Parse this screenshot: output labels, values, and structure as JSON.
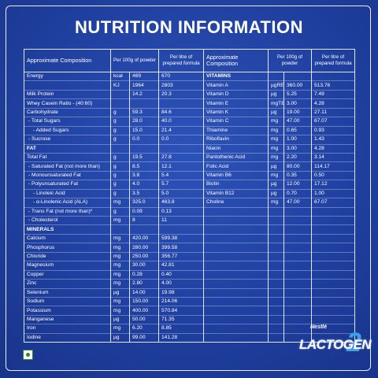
{
  "title": "NUTRITION INFORMATION",
  "left_table": {
    "header": {
      "composition": "Approximate Composition",
      "per_100g": "Per 100g of powder",
      "per_litre": "Per litre of prepared formula"
    },
    "rows": [
      {
        "name": "Energy",
        "unit": "kcal",
        "per_100g": "469",
        "per_litre": "670"
      },
      {
        "unit": "KJ",
        "per_100g": "1964",
        "per_litre": "2803"
      },
      {
        "name": "Milk Protein",
        "per_100g": "14.2",
        "per_litre": "20.3"
      },
      {
        "name": "Whey Casein Ratio - (40:60)"
      },
      {
        "name": "Carbohydrate",
        "unit": "g",
        "per_100g": "59.3",
        "per_litre": "84.6"
      },
      {
        "name": "- Total Sugars",
        "unit": "g",
        "per_100g": "28.0",
        "per_litre": "40.0"
      },
      {
        "name": "- Added Sugars",
        "unit": "g",
        "per_100g": "15.0",
        "per_litre": "21.4"
      },
      {
        "name": "- Sucrose",
        "unit": "g",
        "per_100g": "0.0",
        "per_litre": "0.0"
      },
      {
        "section": "FAT"
      },
      {
        "name": "Total Fat",
        "unit": "g",
        "per_100g": "19.5",
        "per_litre": "27.8"
      },
      {
        "name": "- Saturated Fat (not more than)",
        "unit": "g",
        "per_100g": "8.5",
        "per_litre": "12.1"
      },
      {
        "name": "- Monounsaturated Fat",
        "unit": "g",
        "per_100g": "3.8",
        "per_litre": "5.4"
      },
      {
        "name": "- Polyunsaturated Fat",
        "unit": "g",
        "per_100g": "4.0",
        "per_litre": "5.7"
      },
      {
        "name": "- Linoleic Acid",
        "unit": "g",
        "per_100g": "3.5",
        "per_litre": "5.0"
      },
      {
        "name": "- α-Linolenic Acid (ALA)",
        "unit": "mg",
        "per_100g": "325.0",
        "per_litre": "463.8"
      },
      {
        "name": "- Trans Fat (not more than)*",
        "unit": "g",
        "per_100g": "0.09",
        "per_litre": "0.13"
      },
      {
        "name": "- Cholesterol",
        "unit": "mg",
        "per_100g": "8",
        "per_litre": "11"
      },
      {
        "section": "MINERALS"
      },
      {
        "name": "Calcium",
        "unit": "mg",
        "per_100g": "420.00",
        "per_litre": "599.38"
      },
      {
        "name": "Phosphorus",
        "unit": "mg",
        "per_100g": "280.00",
        "per_litre": "399.58"
      },
      {
        "name": "Chloride",
        "unit": "mg",
        "per_100g": "250.00",
        "per_litre": "356.77"
      },
      {
        "name": "Magnesium",
        "unit": "mg",
        "per_100g": "30.00",
        "per_litre": "42.81"
      },
      {
        "name": "Copper",
        "unit": "mg",
        "per_100g": "0.28",
        "per_litre": "0.40"
      },
      {
        "name": "Zinc",
        "unit": "mg",
        "per_100g": "2.80",
        "per_litre": "4.00"
      },
      {
        "name": "Selenium",
        "unit": "µg",
        "per_100g": "14.00",
        "per_litre": "19.98"
      },
      {
        "name": "Sodium",
        "unit": "mg",
        "per_100g": "150.00",
        "per_litre": "214.06"
      },
      {
        "name": "Potassium",
        "unit": "mg",
        "per_100g": "400.00",
        "per_litre": "570.84"
      },
      {
        "name": "Manganese",
        "unit": "µg",
        "per_100g": "50.00",
        "per_litre": "71.35"
      },
      {
        "name": "Iron",
        "unit": "mg",
        "per_100g": "6.20",
        "per_litre": "8.85"
      },
      {
        "name": "Iodine",
        "unit": "µg",
        "per_100g": "99.00",
        "per_litre": "141.28"
      }
    ]
  },
  "right_table": {
    "header": {
      "composition": "Approximate Composition",
      "per_100g": "Per 100g of powder",
      "per_litre": "Per litre of prepared formula"
    },
    "rows": [
      {
        "section": "VITAMINS"
      },
      {
        "name": "Vitamin A",
        "unit": "µgRE",
        "per_100g": "360.00",
        "per_litre": "513.76"
      },
      {
        "name": "Vitamin D",
        "unit": "µg",
        "per_100g": "5.25",
        "per_litre": "7.49"
      },
      {
        "name": "Vitamin E",
        "unit": "mgTE",
        "per_100g": "3.00",
        "per_litre": "4.28"
      },
      {
        "name": "Vitamin K",
        "unit": "µg",
        "per_100g": "19.00",
        "per_litre": "27.11"
      },
      {
        "name": "Vitamin C",
        "unit": "mg",
        "per_100g": "47.00",
        "per_litre": "67.07"
      },
      {
        "name": "Thiamine",
        "unit": "mg",
        "per_100g": "0.65",
        "per_litre": "0.93"
      },
      {
        "name": "Riboflavin",
        "unit": "mg",
        "per_100g": "1.00",
        "per_litre": "1.43"
      },
      {
        "name": "Niacin",
        "unit": "mg",
        "per_100g": "3.00",
        "per_litre": "4.28"
      },
      {
        "name": "Pantothenic Acid",
        "unit": "mg",
        "per_100g": "2.20",
        "per_litre": "3.14"
      },
      {
        "name": "Folic Acid",
        "unit": "µg",
        "per_100g": "80.00",
        "per_litre": "114.17"
      },
      {
        "name": "Vitamin B6",
        "unit": "mg",
        "per_100g": "0.35",
        "per_litre": "0.50"
      },
      {
        "name": "Biotin",
        "unit": "µg",
        "per_100g": "12.00",
        "per_litre": "17.12"
      },
      {
        "name": "Vitamin B12",
        "unit": "µg",
        "per_100g": "0.70",
        "per_litre": "1.00"
      },
      {
        "name": "Choline",
        "unit": "mg",
        "per_100g": "47.00",
        "per_litre": "67.07"
      }
    ]
  },
  "brand": {
    "maker": "Nestlé",
    "product": "LACTOGEN",
    "stage": "2"
  }
}
